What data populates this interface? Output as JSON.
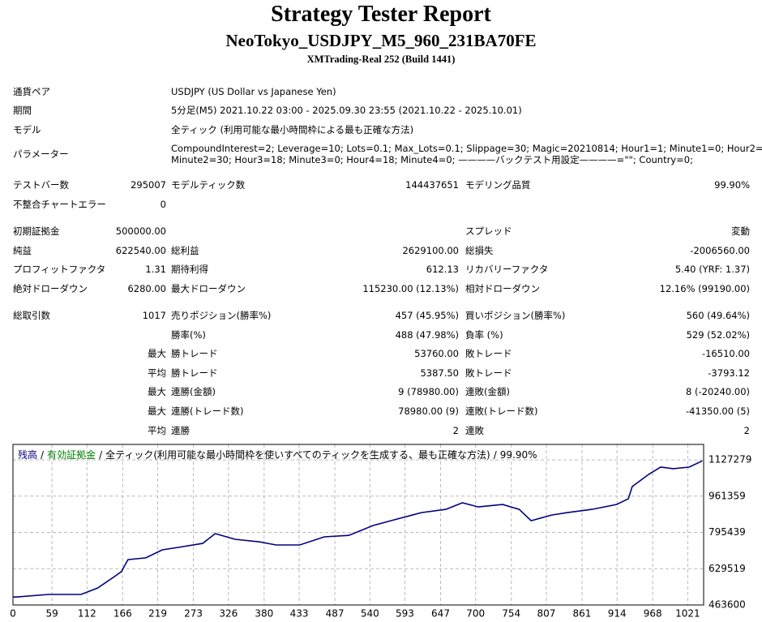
{
  "header": {
    "title": "Strategy Tester Report",
    "subtitle": "NeoTokyo_USDJPY_M5_960_231BA70FE",
    "server": "XMTrading-Real 252 (Build 1441)"
  },
  "info": [
    [
      "通貨ペア",
      "USDJPY (US Dollar vs Japanese Yen)"
    ],
    [
      "期間",
      "5分足(M5) 2021.10.22 03:00 - 2025.09.30 23:55 (2021.10.22 - 2025.10.01)"
    ],
    [
      "モデル",
      "全ティック (利用可能な最小時間枠による最も正確な方法)"
    ],
    [
      "パラメーター",
      "CompoundInterest=2; Leverage=10; Lots=0.1; Max_Lots=0.1; Slippage=30; Magic=20210814; Hour1=1; Minute1=0; Hour2=4;",
      "Minute2=30; Hour3=18; Minute3=0; Hour4=18; Minute4=0; ————バックテスト用設定————=\"\"; Country=0;"
    ]
  ],
  "stats": [
    [
      [
        "テストバー数",
        "295007",
        "モデルティック数",
        "144437651",
        "モデリング品質",
        "99.90%"
      ],
      [
        "不整合チャートエラー",
        "0",
        null,
        null,
        null,
        null
      ]
    ],
    [
      [
        "初期証拠金",
        "500000.00",
        null,
        null,
        "スプレッド",
        "変動"
      ],
      [
        "純益",
        "622540.00",
        "総利益",
        "2629100.00",
        "総損失",
        "-2006560.00"
      ],
      [
        "プロフィットファクタ",
        "1.31",
        "期待利得",
        "612.13",
        "リカバリーファクタ",
        "5.40 (YRF: 1.37)"
      ],
      [
        "絶対ドローダウン",
        "6280.00",
        "最大ドローダウン",
        "115230.00 (12.13%)",
        "相対ドローダウン",
        "12.16% (99190.00)"
      ]
    ],
    [
      [
        "総取引数",
        "1017",
        "売りポジション(勝率%)",
        "457 (45.95%)",
        "買いポジション(勝率%)",
        "560 (49.64%)"
      ],
      [
        null,
        null,
        "勝率(%)",
        "488 (47.98%)",
        "負率 (%)",
        "529 (52.02%)"
      ],
      [
        null,
        "最大",
        "勝トレード",
        "53760.00",
        "敗トレード",
        "-16510.00"
      ],
      [
        null,
        "平均",
        "勝トレード",
        "5387.50",
        "敗トレード",
        "-3793.12"
      ],
      [
        null,
        "最大",
        "連勝(金額)",
        "9 (78980.00)",
        "連敗(金額)",
        "8 (-20240.00)"
      ],
      [
        null,
        "最大",
        "連勝(トレード数)",
        "78980.00 (9)",
        "連敗(トレード数)",
        "-41350.00 (5)"
      ],
      [
        null,
        "平均",
        "連勝",
        "2",
        "連敗",
        "2"
      ]
    ]
  ],
  "chart_data": {
    "type": "line",
    "legend": {
      "separator": "/",
      "equity": {
        "name": "有効証拠金",
        "color": "#008000"
      },
      "note": "全ティック(利用可能な最小時間枠を使いすべてのティックを生成する、最も正確な方法)",
      "quality": "99.90%"
    },
    "x": [
      0,
      5,
      54,
      103,
      128,
      152,
      164,
      174,
      201,
      226,
      250,
      287,
      306,
      336,
      373,
      398,
      434,
      471,
      508,
      545,
      582,
      618,
      655,
      680,
      704,
      741,
      766,
      784,
      815,
      839,
      876,
      913,
      931,
      937,
      962,
      980,
      999,
      1023,
      1043
    ],
    "series": [
      {
        "name": "残高",
        "color": "#000080",
        "values": [
          500000,
          500000,
          512000,
          512000,
          541000,
          590000,
          616000,
          671000,
          679000,
          716000,
          727000,
          745000,
          790000,
          764000,
          752000,
          738000,
          738000,
          775000,
          782000,
          827000,
          857000,
          886000,
          901000,
          931000,
          912000,
          923000,
          901000,
          849000,
          875000,
          886000,
          901000,
          923000,
          949000,
          1005000,
          1061000,
          1094000,
          1087000,
          1094000,
          1122540
        ]
      }
    ],
    "xlim": [
      0,
      1045
    ],
    "xticks": [
      0,
      59,
      112,
      166,
      219,
      273,
      326,
      380,
      433,
      487,
      540,
      593,
      647,
      700,
      754,
      807,
      861,
      914,
      968,
      1021
    ],
    "ylim": [
      463600,
      1198000
    ],
    "yticks": [
      463600,
      629519,
      795439,
      961359,
      1127279
    ],
    "grid": true
  }
}
